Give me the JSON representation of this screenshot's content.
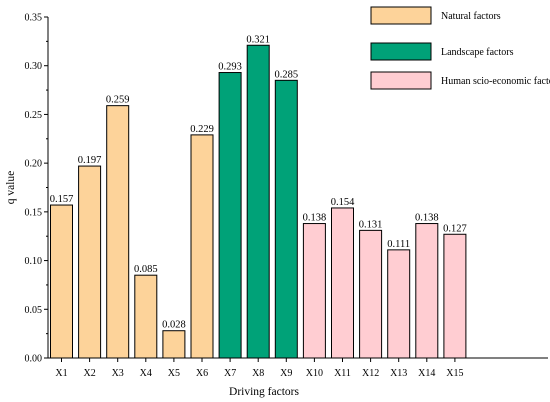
{
  "chart_data": {
    "type": "bar",
    "xlabel": "Driving factors",
    "ylabel": "q value",
    "ylim": [
      0,
      0.35
    ],
    "yticks": [
      "0.00",
      "0.05",
      "0.10",
      "0.15",
      "0.20",
      "0.25",
      "0.30",
      "0.35"
    ],
    "categories": [
      "X1",
      "X2",
      "X3",
      "X4",
      "X5",
      "X6",
      "X7",
      "X8",
      "X9",
      "X10",
      "X11",
      "X12",
      "X13",
      "X14",
      "X15"
    ],
    "values": [
      0.157,
      0.197,
      0.259,
      0.085,
      0.028,
      0.229,
      0.293,
      0.321,
      0.285,
      0.138,
      0.154,
      0.131,
      0.111,
      0.138,
      0.127
    ],
    "value_labels": [
      "0.157",
      "0.197",
      "0.259",
      "0.085",
      "0.028",
      "0.229",
      "0.293",
      "0.321",
      "0.285",
      "0.138",
      "0.154",
      "0.131",
      "0.111",
      "0.138",
      "0.127"
    ],
    "groups": [
      0,
      0,
      0,
      0,
      0,
      0,
      1,
      1,
      1,
      2,
      2,
      2,
      2,
      2,
      2
    ],
    "legend": [
      {
        "name": "Natural factors",
        "color": "#FDD39A"
      },
      {
        "name": "Landscape factors",
        "color": "#00A278"
      },
      {
        "name": "Human scio-economic factors",
        "color": "#FFCDD2"
      }
    ],
    "legend_position": "top-right",
    "grid": false
  }
}
